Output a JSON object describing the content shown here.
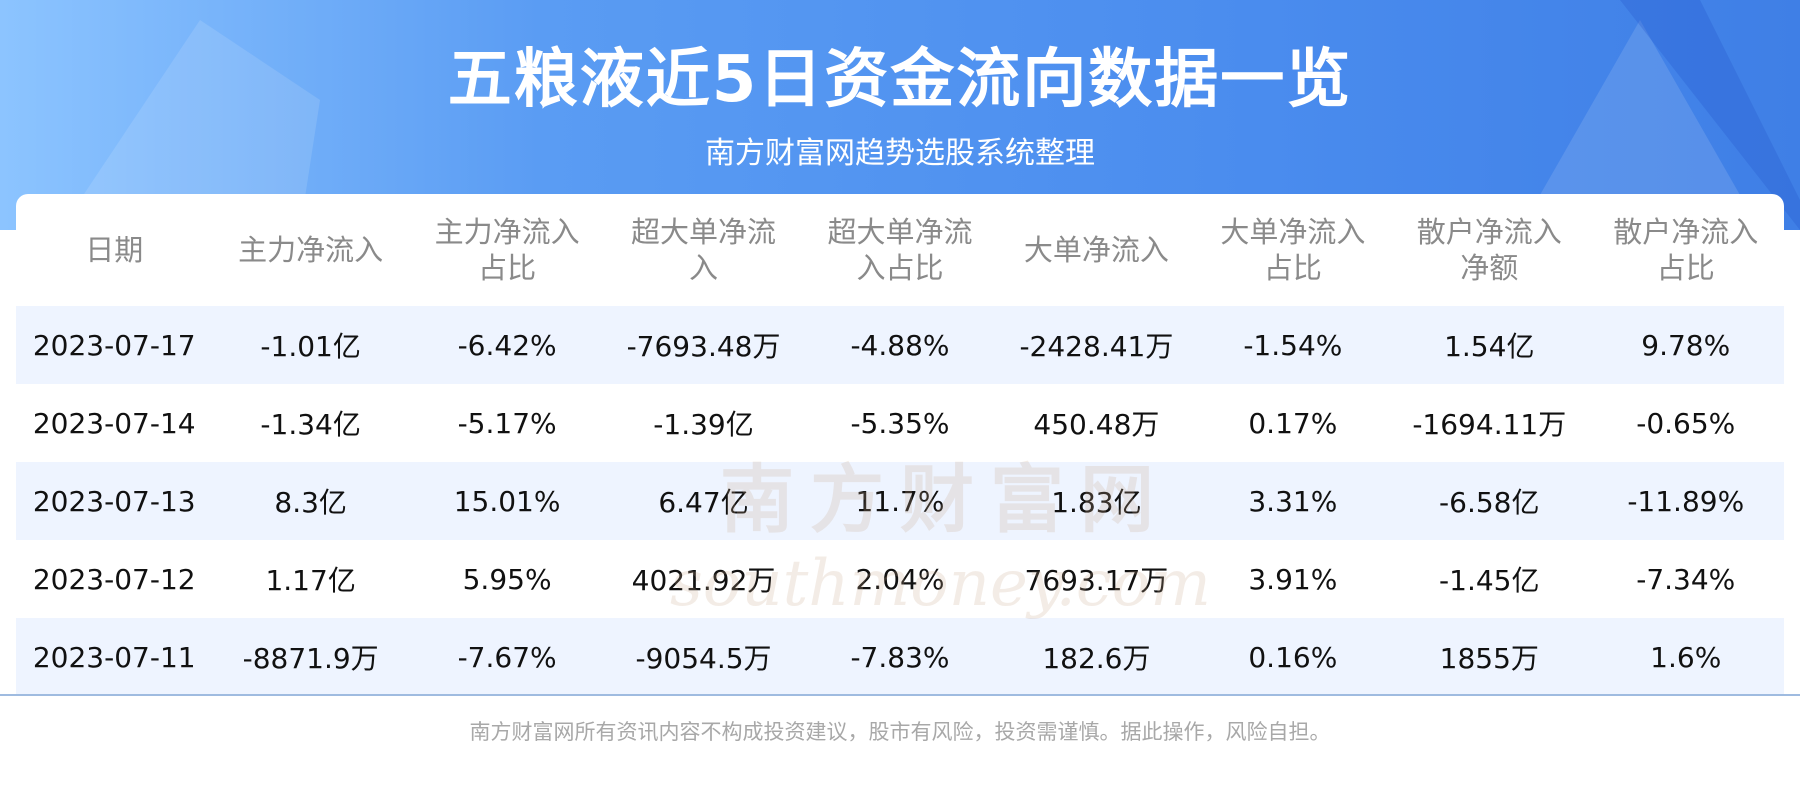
{
  "header": {
    "title": "五粮液近5日资金流向数据一览",
    "subtitle": "南方财富网趋势选股系统整理"
  },
  "table": {
    "columns": [
      "日期",
      "主力净流入",
      "主力净流入占比",
      "超大单净流入",
      "超大单净流入占比",
      "大单净流入",
      "大单净流入占比",
      "散户净流入净额",
      "散户净流入占比"
    ],
    "rows": [
      [
        "2023-07-17",
        "-1.01亿",
        "-6.42%",
        "-7693.48万",
        "-4.88%",
        "-2428.41万",
        "-1.54%",
        "1.54亿",
        "9.78%"
      ],
      [
        "2023-07-14",
        "-1.34亿",
        "-5.17%",
        "-1.39亿",
        "-5.35%",
        "450.48万",
        "0.17%",
        "-1694.11万",
        "-0.65%"
      ],
      [
        "2023-07-13",
        "8.3亿",
        "15.01%",
        "6.47亿",
        "11.7%",
        "1.83亿",
        "3.31%",
        "-6.58亿",
        "-11.89%"
      ],
      [
        "2023-07-12",
        "1.17亿",
        "5.95%",
        "4021.92万",
        "2.04%",
        "7693.17万",
        "3.91%",
        "-1.45亿",
        "-7.34%"
      ],
      [
        "2023-07-11",
        "-8871.9万",
        "-7.67%",
        "-9054.5万",
        "-7.83%",
        "182.6万",
        "0.16%",
        "1855万",
        "1.6%"
      ]
    ]
  },
  "watermark": {
    "name": "南方财富网",
    "site": "southmoney.com"
  },
  "footer": {
    "disclaimer": "南方财富网所有资讯内容不构成投资建议，股市有风险，投资需谨慎。据此操作，风险自担。"
  }
}
